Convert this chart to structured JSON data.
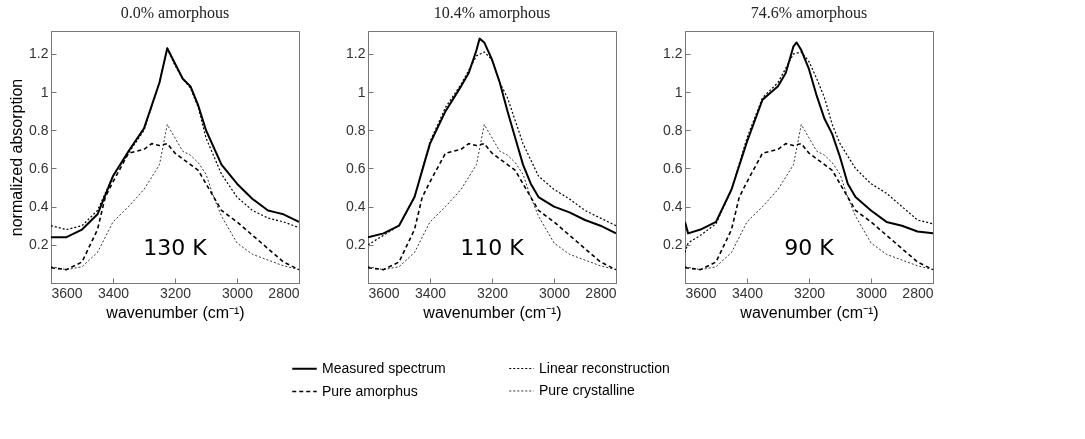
{
  "chart_data": [
    {
      "type": "line",
      "title": "0.0% amorphous",
      "xlabel": "wavenumber (cm⁻¹)",
      "ylabel": "normalized absorption",
      "xlim": [
        3600,
        2800
      ],
      "xticks": [
        3600,
        3400,
        3200,
        3000,
        2800
      ],
      "ylim": [
        0,
        1.32
      ],
      "yticks": [
        0.2,
        0.4,
        0.6,
        0.8,
        1,
        1.2
      ],
      "legend": "bottom",
      "annotations": [
        "130 K"
      ],
      "series": [
        {
          "name": "Measured spectrum",
          "color": "#000000",
          "line_style": "solid",
          "x": [
            3600,
            3550,
            3500,
            3450,
            3400,
            3350,
            3300,
            3250,
            3225,
            3200,
            3175,
            3150,
            3125,
            3100,
            3050,
            3000,
            2950,
            2900,
            2875,
            2850,
            2825,
            2800
          ],
          "values": [
            0.24,
            0.24,
            0.28,
            0.36,
            0.56,
            0.69,
            0.81,
            1.05,
            1.23,
            1.15,
            1.07,
            1.03,
            0.93,
            0.8,
            0.62,
            0.52,
            0.44,
            0.38,
            0.37,
            0.36,
            0.34,
            0.32
          ]
        },
        {
          "name": "Pure amorphus",
          "color": "#000000",
          "line_style": "dashed",
          "x": [
            3600,
            3550,
            3500,
            3450,
            3425,
            3400,
            3350,
            3300,
            3275,
            3250,
            3225,
            3200,
            3150,
            3125,
            3100,
            3050,
            3000,
            2950,
            2900,
            2850,
            2800
          ],
          "values": [
            0.08,
            0.07,
            0.11,
            0.28,
            0.45,
            0.53,
            0.68,
            0.7,
            0.73,
            0.72,
            0.73,
            0.68,
            0.62,
            0.59,
            0.52,
            0.38,
            0.32,
            0.25,
            0.18,
            0.11,
            0.07
          ]
        },
        {
          "name": "Linear reconstruction",
          "color": "#000000",
          "line_style": "dotted",
          "x": [
            3600,
            3550,
            3500,
            3450,
            3400,
            3350,
            3300,
            3250,
            3225,
            3200,
            3175,
            3150,
            3125,
            3100,
            3050,
            3000,
            2950,
            2900,
            2850,
            2800
          ],
          "values": [
            0.3,
            0.28,
            0.3,
            0.38,
            0.56,
            0.68,
            0.8,
            1.05,
            1.23,
            1.14,
            1.07,
            1.02,
            0.92,
            0.76,
            0.57,
            0.45,
            0.38,
            0.34,
            0.32,
            0.29
          ]
        },
        {
          "name": "Pure crystalline",
          "color": "#000000",
          "line_style": "dotted",
          "x": [
            3600,
            3550,
            3500,
            3450,
            3400,
            3350,
            3300,
            3250,
            3225,
            3200,
            3175,
            3150,
            3125,
            3100,
            3075,
            3050,
            3000,
            2950,
            2900,
            2850,
            2800
          ],
          "values": [
            0.085,
            0.07,
            0.085,
            0.16,
            0.32,
            0.4,
            0.49,
            0.62,
            0.83,
            0.76,
            0.69,
            0.67,
            0.63,
            0.57,
            0.45,
            0.35,
            0.21,
            0.15,
            0.12,
            0.09,
            0.07
          ]
        }
      ]
    },
    {
      "type": "line",
      "title": "10.4% amorphous",
      "xlabel": "wavenumber (cm⁻¹)",
      "xlim": [
        3600,
        2800
      ],
      "xticks": [
        3600,
        3400,
        3200,
        3000,
        2800
      ],
      "ylim": [
        0,
        1.32
      ],
      "yticks": [
        0.2,
        0.4,
        0.6,
        0.8,
        1,
        1.2
      ],
      "legend": "bottom",
      "annotations": [
        "110 K"
      ],
      "series": [
        {
          "name": "Measured spectrum",
          "color": "#000000",
          "line_style": "solid",
          "x": [
            3600,
            3550,
            3500,
            3450,
            3400,
            3350,
            3300,
            3275,
            3250,
            3240,
            3225,
            3200,
            3175,
            3150,
            3125,
            3100,
            3075,
            3050,
            3000,
            2950,
            2900,
            2850,
            2800
          ],
          "values": [
            0.24,
            0.26,
            0.3,
            0.45,
            0.73,
            0.9,
            1.03,
            1.1,
            1.22,
            1.28,
            1.26,
            1.17,
            1.05,
            0.9,
            0.76,
            0.62,
            0.52,
            0.45,
            0.4,
            0.37,
            0.33,
            0.3,
            0.26
          ]
        },
        {
          "name": "Pure amorphus",
          "color": "#000000",
          "line_style": "dashed",
          "x": [
            3600,
            3550,
            3500,
            3450,
            3425,
            3400,
            3350,
            3300,
            3275,
            3250,
            3225,
            3200,
            3150,
            3125,
            3100,
            3050,
            3000,
            2950,
            2900,
            2850,
            2800
          ],
          "values": [
            0.08,
            0.07,
            0.11,
            0.28,
            0.45,
            0.53,
            0.68,
            0.7,
            0.73,
            0.72,
            0.73,
            0.68,
            0.62,
            0.59,
            0.52,
            0.38,
            0.32,
            0.25,
            0.18,
            0.11,
            0.07
          ]
        },
        {
          "name": "Linear reconstruction",
          "color": "#000000",
          "line_style": "dotted",
          "x": [
            3600,
            3550,
            3500,
            3450,
            3400,
            3350,
            3300,
            3250,
            3225,
            3200,
            3175,
            3150,
            3125,
            3100,
            3050,
            3000,
            2950,
            2900,
            2850,
            2800
          ],
          "values": [
            0.2,
            0.25,
            0.3,
            0.45,
            0.74,
            0.92,
            1.04,
            1.19,
            1.21,
            1.17,
            1.05,
            0.97,
            0.85,
            0.73,
            0.56,
            0.49,
            0.44,
            0.38,
            0.34,
            0.3
          ]
        },
        {
          "name": "Pure crystalline",
          "color": "#000000",
          "line_style": "dotted",
          "x": [
            3600,
            3550,
            3500,
            3450,
            3400,
            3350,
            3300,
            3250,
            3225,
            3200,
            3175,
            3150,
            3125,
            3100,
            3075,
            3050,
            3000,
            2950,
            2900,
            2850,
            2800
          ],
          "values": [
            0.085,
            0.07,
            0.085,
            0.16,
            0.32,
            0.4,
            0.49,
            0.62,
            0.83,
            0.76,
            0.69,
            0.67,
            0.63,
            0.57,
            0.45,
            0.35,
            0.21,
            0.15,
            0.12,
            0.09,
            0.07
          ]
        }
      ]
    },
    {
      "type": "line",
      "title": "74.6% amorphous",
      "xlabel": "wavenumber (cm⁻¹)",
      "xlim": [
        3600,
        2800
      ],
      "xticks": [
        3600,
        3400,
        3200,
        3000,
        2800
      ],
      "ylim": [
        0,
        1.32
      ],
      "yticks": [
        0.2,
        0.4,
        0.6,
        0.8,
        1,
        1.2
      ],
      "legend": "bottom",
      "annotations": [
        "90 K"
      ],
      "series": [
        {
          "name": "Measured spectrum",
          "color": "#000000",
          "line_style": "solid",
          "x": [
            3600,
            3590,
            3550,
            3500,
            3450,
            3400,
            3350,
            3300,
            3275,
            3250,
            3240,
            3225,
            3200,
            3175,
            3150,
            3125,
            3100,
            3075,
            3050,
            3000,
            2950,
            2900,
            2850,
            2800
          ],
          "values": [
            0.32,
            0.26,
            0.28,
            0.32,
            0.49,
            0.74,
            0.96,
            1.03,
            1.1,
            1.24,
            1.26,
            1.22,
            1.12,
            0.98,
            0.86,
            0.78,
            0.66,
            0.52,
            0.45,
            0.38,
            0.32,
            0.3,
            0.27,
            0.26
          ]
        },
        {
          "name": "Pure amorphus",
          "color": "#000000",
          "line_style": "dashed",
          "x": [
            3600,
            3550,
            3500,
            3450,
            3425,
            3400,
            3350,
            3300,
            3275,
            3250,
            3225,
            3200,
            3150,
            3125,
            3100,
            3050,
            3000,
            2950,
            2900,
            2850,
            2800
          ],
          "values": [
            0.08,
            0.07,
            0.11,
            0.28,
            0.45,
            0.53,
            0.68,
            0.7,
            0.73,
            0.72,
            0.73,
            0.68,
            0.62,
            0.59,
            0.52,
            0.38,
            0.32,
            0.25,
            0.18,
            0.11,
            0.07
          ]
        },
        {
          "name": "Linear reconstruction",
          "color": "#000000",
          "line_style": "dotted",
          "x": [
            3600,
            3590,
            3550,
            3500,
            3450,
            3400,
            3350,
            3300,
            3250,
            3225,
            3200,
            3175,
            3150,
            3125,
            3100,
            3050,
            3000,
            2950,
            2900,
            2850,
            2800
          ],
          "values": [
            0.16,
            0.21,
            0.25,
            0.31,
            0.49,
            0.76,
            0.97,
            1.05,
            1.2,
            1.21,
            1.16,
            1.07,
            0.97,
            0.83,
            0.73,
            0.6,
            0.52,
            0.47,
            0.4,
            0.33,
            0.31
          ]
        },
        {
          "name": "Pure crystalline",
          "color": "#000000",
          "line_style": "dotted",
          "x": [
            3600,
            3550,
            3500,
            3450,
            3400,
            3350,
            3300,
            3250,
            3225,
            3200,
            3175,
            3150,
            3125,
            3100,
            3075,
            3050,
            3000,
            2950,
            2900,
            2850,
            2800
          ],
          "values": [
            0.085,
            0.07,
            0.085,
            0.16,
            0.32,
            0.4,
            0.49,
            0.62,
            0.83,
            0.76,
            0.69,
            0.67,
            0.63,
            0.57,
            0.45,
            0.35,
            0.21,
            0.15,
            0.12,
            0.09,
            0.07
          ]
        }
      ]
    }
  ]
}
